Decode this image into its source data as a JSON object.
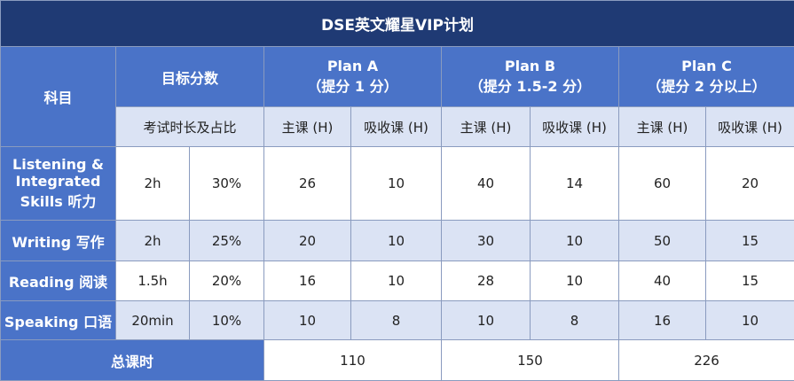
{
  "title": "DSE英文耀星VIP计划",
  "header": {
    "subject": "科目",
    "target": "目标分数",
    "exam": "考试时长及占比",
    "plans": [
      {
        "name": "Plan A",
        "note": "（提分 1 分）",
        "cols": [
          "主课 (H)",
          "吸收课 (H)"
        ]
      },
      {
        "name": "Plan B",
        "note": "（提分 1.5-2 分）",
        "cols": [
          "主课 (H)",
          "吸收课 (H)"
        ]
      },
      {
        "name": "Plan C",
        "note": "（提分 2 分以上）",
        "cols": [
          "主课 (H)",
          "吸收课 (H)"
        ]
      }
    ]
  },
  "rows": [
    {
      "subject": "Listening & Integrated Skills 听力",
      "duration": "2h",
      "weight": "30%",
      "values": [
        26,
        10,
        40,
        14,
        60,
        20
      ]
    },
    {
      "subject": "Writing 写作",
      "duration": "2h",
      "weight": "25%",
      "values": [
        20,
        10,
        30,
        10,
        50,
        15
      ]
    },
    {
      "subject": "Reading 阅读",
      "duration": "1.5h",
      "weight": "20%",
      "values": [
        16,
        10,
        28,
        10,
        40,
        15
      ]
    },
    {
      "subject": "Speaking 口语",
      "duration": "20min",
      "weight": "10%",
      "values": [
        10,
        8,
        10,
        8,
        16,
        10
      ]
    }
  ],
  "total": {
    "label": "总课时",
    "values": [
      110,
      150,
      226
    ]
  }
}
